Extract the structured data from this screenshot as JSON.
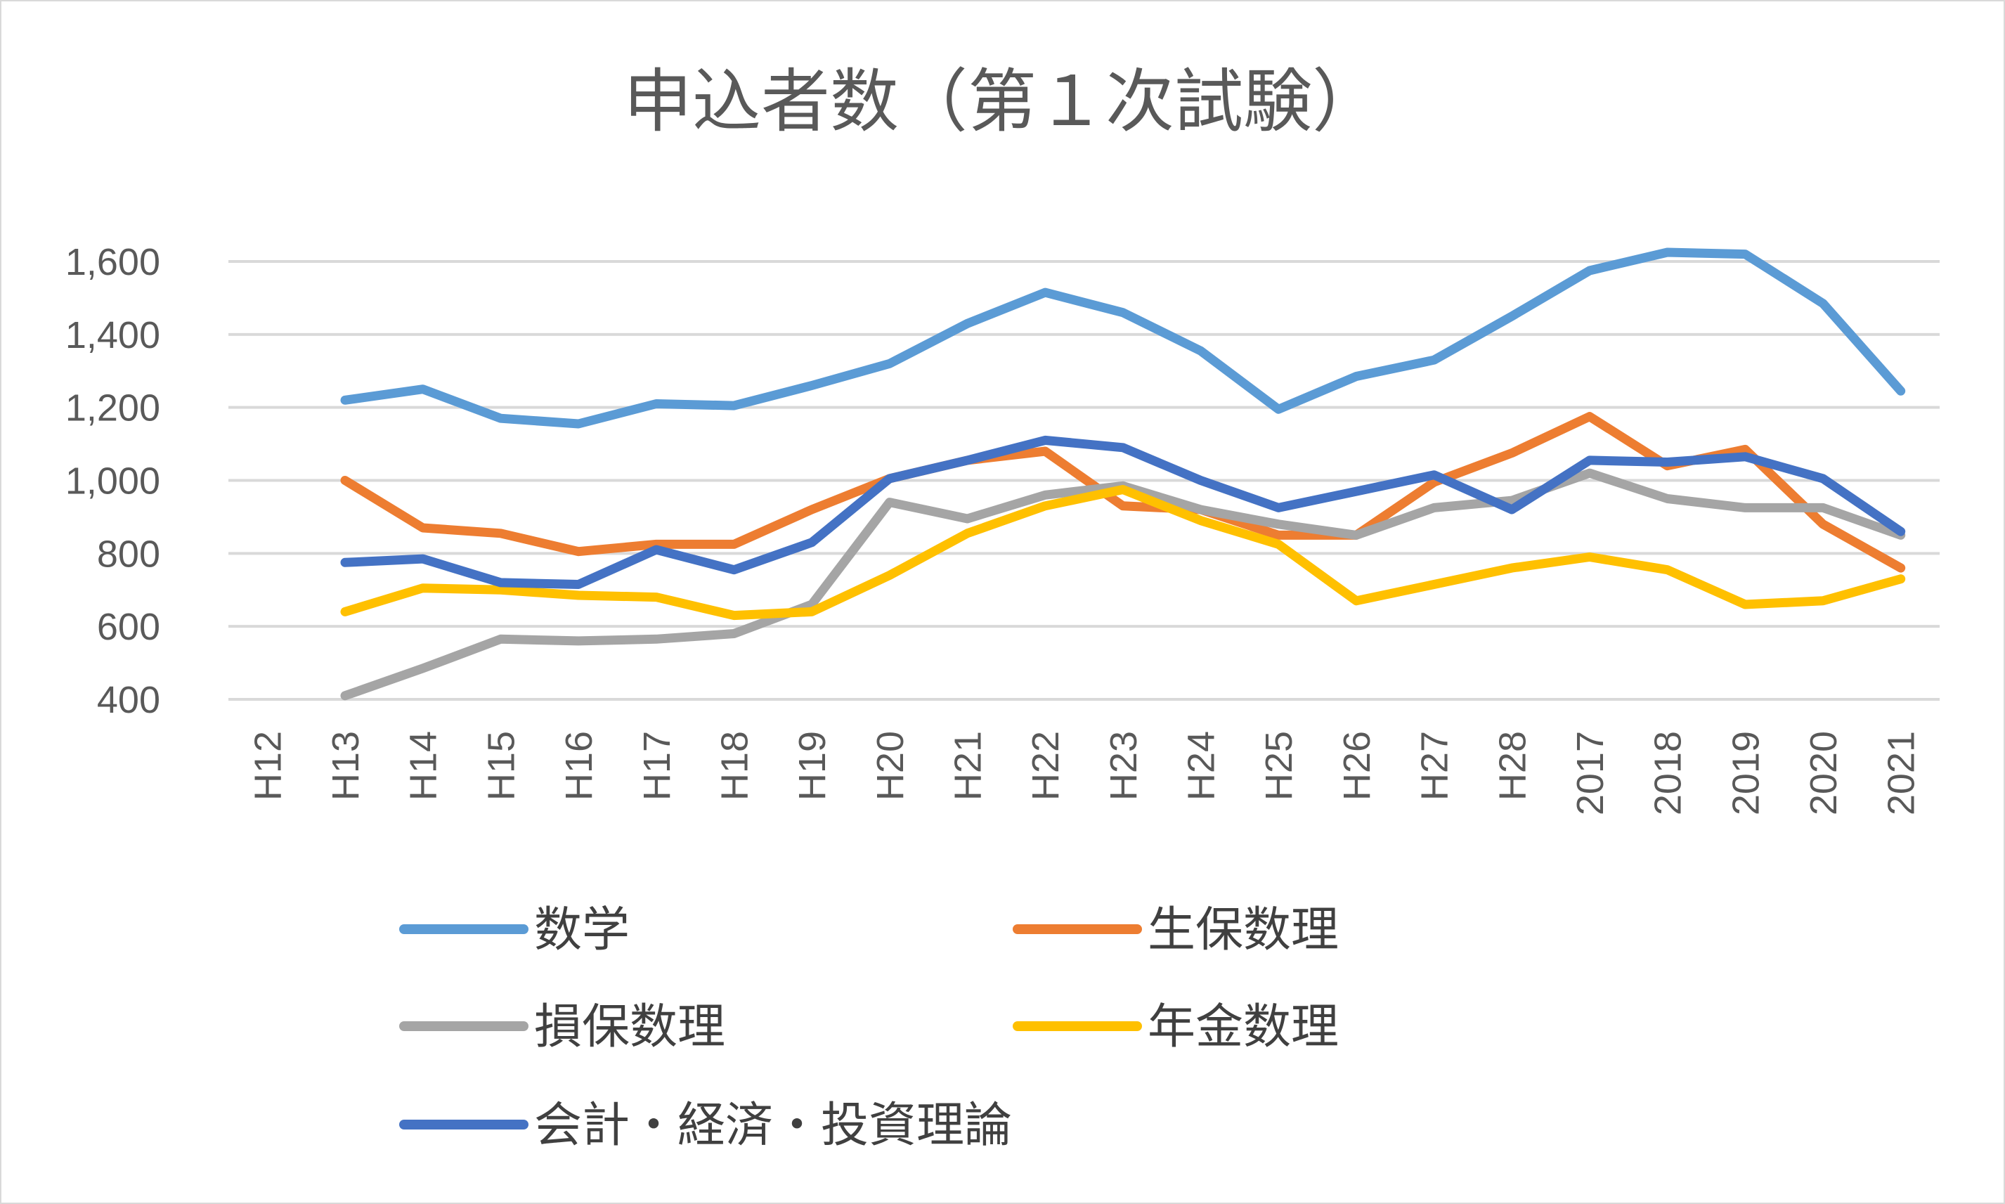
{
  "chart_data": {
    "type": "line",
    "title": "申込者数（第１次試験）",
    "xlabel": "",
    "ylabel": "",
    "ylim": [
      400,
      1600
    ],
    "yticks": [
      400,
      600,
      800,
      1000,
      1200,
      1400,
      1600
    ],
    "ytick_labels": [
      "400",
      "600",
      "800",
      "1,000",
      "1,200",
      "1,400",
      "1,600"
    ],
    "grid": true,
    "legend_position": "bottom",
    "categories": [
      "H12",
      "H13",
      "H14",
      "H15",
      "H16",
      "H17",
      "H18",
      "H19",
      "H20",
      "H21",
      "H22",
      "H23",
      "H24",
      "H25",
      "H26",
      "H27",
      "H28",
      "2017",
      "2018",
      "2019",
      "2020",
      "2021"
    ],
    "series": [
      {
        "name": "数学",
        "color": "#5B9BD5",
        "values": [
          null,
          1220,
          1250,
          1170,
          1155,
          1210,
          1205,
          1260,
          1320,
          1430,
          1515,
          1460,
          1355,
          1195,
          1285,
          1330,
          1450,
          1575,
          1625,
          1620,
          1485,
          1245
        ]
      },
      {
        "name": "生保数理",
        "color": "#ED7D31",
        "values": [
          null,
          1000,
          870,
          855,
          805,
          825,
          825,
          920,
          1005,
          1055,
          1080,
          930,
          920,
          850,
          850,
          995,
          1075,
          1175,
          1040,
          1085,
          880,
          760
        ]
      },
      {
        "name": "損保数理",
        "color": "#A5A5A5",
        "values": [
          null,
          410,
          485,
          565,
          560,
          565,
          580,
          660,
          940,
          895,
          960,
          985,
          920,
          880,
          850,
          925,
          945,
          1020,
          950,
          925,
          925,
          850
        ]
      },
      {
        "name": "年金数理",
        "color": "#FFC000",
        "values": [
          null,
          640,
          705,
          700,
          685,
          680,
          630,
          640,
          740,
          855,
          930,
          975,
          890,
          825,
          670,
          715,
          760,
          790,
          755,
          660,
          670,
          730
        ]
      },
      {
        "name": "会計・経済・投資理論",
        "color": "#4472C4",
        "values": [
          null,
          775,
          785,
          720,
          715,
          810,
          755,
          830,
          1005,
          1055,
          1110,
          1090,
          1000,
          925,
          970,
          1015,
          920,
          1055,
          1050,
          1065,
          1005,
          860
        ]
      }
    ]
  }
}
